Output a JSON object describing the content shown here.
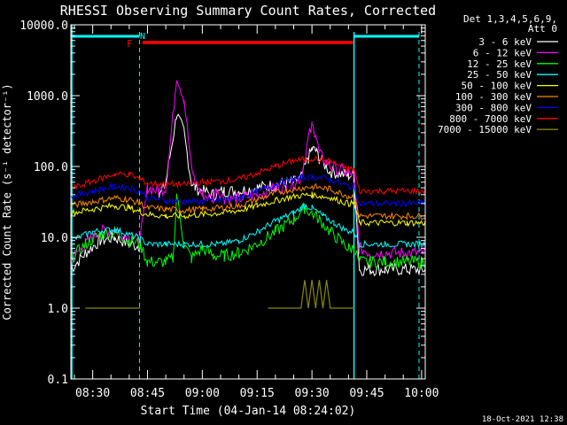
{
  "chart_data": {
    "type": "line",
    "title": "RHESSI Observing Summary Count Rates, Corrected",
    "xlabel": "Start Time (04-Jan-14 08:24:02)",
    "ylabel": "Corrected Count Rate (s⁻¹ detector⁻¹)",
    "ylog": true,
    "ylim": [
      0.1,
      10000
    ],
    "xlim_minutes": [
      24.03,
      121
    ],
    "yticks": [
      {
        "v": 0.1,
        "label": "0.1"
      },
      {
        "v": 1,
        "label": "1.0"
      },
      {
        "v": 10,
        "label": "10.0"
      },
      {
        "v": 100,
        "label": "100.0"
      },
      {
        "v": 1000,
        "label": "1000.0"
      },
      {
        "v": 10000,
        "label": "10000.0"
      }
    ],
    "xticks": [
      {
        "m": 30,
        "label": "08:30"
      },
      {
        "m": 45,
        "label": "08:45"
      },
      {
        "m": 60,
        "label": "09:00"
      },
      {
        "m": 75,
        "label": "09:15"
      },
      {
        "m": 90,
        "label": "09:30"
      },
      {
        "m": 105,
        "label": "09:45"
      },
      {
        "m": 120,
        "label": "10:00"
      }
    ],
    "legend_header": [
      "Det 1,3,4,5,6,9,",
      "Att 0"
    ],
    "legend_position": "right",
    "series": [
      {
        "name": "3 - 6 keV",
        "color": "#ffffff",
        "x": [
          24,
          28,
          32,
          36,
          40,
          43,
          45,
          48,
          50,
          53,
          55,
          57,
          58,
          60,
          63,
          66,
          70,
          75,
          80,
          85,
          87,
          89,
          90,
          91,
          92,
          95,
          100,
          101.5,
          103,
          106,
          110,
          116,
          120,
          121
        ],
        "y": [
          3.5,
          6,
          9,
          10,
          8,
          7.5,
          null,
          35,
          60,
          550,
          300,
          60,
          50,
          45,
          40,
          45,
          45,
          50,
          55,
          60,
          70,
          130,
          175,
          165,
          130,
          85,
          75,
          75,
          3.5,
          3.5,
          3.5,
          3.5,
          3.5,
          3.5
        ]
      },
      {
        "name": "6 - 12 keV",
        "color": "#ff00ff",
        "x": [
          24,
          28,
          32,
          36,
          40,
          43,
          45,
          48,
          50,
          51.5,
          53,
          55,
          57,
          58,
          60,
          63,
          64,
          66,
          70,
          75,
          80,
          85,
          87,
          89,
          90,
          91,
          92,
          95,
          100,
          101.5,
          103,
          106,
          110,
          116,
          120,
          121
        ],
        "y": [
          5,
          8,
          12,
          13,
          10,
          9,
          50,
          45,
          50,
          300,
          1900,
          900,
          100,
          60,
          40,
          35,
          50,
          35,
          35,
          40,
          50,
          55,
          70,
          250,
          370,
          300,
          150,
          100,
          80,
          80,
          7,
          6,
          6,
          6,
          6,
          6
        ]
      },
      {
        "name": "12 - 25 keV",
        "color": "#00ff00",
        "x": [
          24,
          28,
          32,
          36,
          40,
          43,
          45,
          48,
          50,
          52,
          53,
          55,
          57,
          60,
          63,
          66,
          70,
          75,
          80,
          85,
          88,
          90,
          92,
          95,
          100,
          101.5,
          103,
          106,
          110,
          116,
          120,
          121
        ],
        "y": [
          5,
          8,
          11,
          12,
          9,
          8,
          4.5,
          4.5,
          4.5,
          5,
          40,
          8,
          5,
          7,
          5.5,
          5.5,
          6,
          8,
          12,
          18,
          26,
          22,
          18,
          12,
          7,
          7,
          4.5,
          4.5,
          4.5,
          4.5,
          4.5,
          4.5
        ]
      },
      {
        "name": "25 - 50 keV",
        "color": "#00ffff",
        "x": [
          24,
          30,
          36,
          40,
          43,
          45,
          50,
          55,
          60,
          65,
          70,
          75,
          80,
          85,
          88,
          90,
          93,
          96,
          100,
          101.5,
          103,
          110,
          116,
          121
        ],
        "y": [
          9,
          12,
          13,
          11,
          9.5,
          8,
          8,
          8,
          8,
          8,
          9,
          12,
          17,
          22,
          28,
          26,
          20,
          16,
          12,
          12,
          8,
          8,
          8,
          8
        ]
      },
      {
        "name": "50 - 100 keV",
        "color": "#ffff00",
        "x": [
          24,
          30,
          36,
          40,
          43,
          45,
          50,
          55,
          60,
          65,
          70,
          75,
          80,
          85,
          90,
          95,
          100,
          101.5,
          103,
          110,
          116,
          121
        ],
        "y": [
          22,
          25,
          28,
          26,
          23,
          21,
          20,
          20,
          21,
          22,
          24,
          28,
          33,
          38,
          40,
          36,
          30,
          30,
          16,
          16,
          16,
          16
        ]
      },
      {
        "name": "100 - 300 keV",
        "color": "#ff8800",
        "x": [
          24,
          30,
          36,
          40,
          43,
          45,
          50,
          55,
          60,
          65,
          70,
          75,
          80,
          85,
          90,
          95,
          100,
          101.5,
          103,
          110,
          116,
          121
        ],
        "y": [
          28,
          32,
          36,
          34,
          30,
          26,
          25,
          24,
          25,
          26,
          28,
          34,
          42,
          48,
          52,
          48,
          38,
          38,
          20,
          20,
          20,
          20
        ]
      },
      {
        "name": "300 - 800 keV",
        "color": "#0000ff",
        "x": [
          24,
          30,
          36,
          40,
          43,
          45,
          50,
          55,
          60,
          65,
          70,
          75,
          80,
          85,
          90,
          95,
          100,
          101.5,
          103,
          110,
          116,
          121
        ],
        "y": [
          38,
          45,
          52,
          50,
          44,
          36,
          33,
          32,
          32,
          33,
          36,
          44,
          56,
          66,
          72,
          66,
          52,
          52,
          30,
          30,
          30,
          30
        ]
      },
      {
        "name": "800 - 7000 keV",
        "color": "#ff0000",
        "x": [
          24,
          30,
          36,
          40,
          43,
          45,
          50,
          55,
          60,
          65,
          70,
          75,
          80,
          85,
          90,
          95,
          100,
          101.5,
          103,
          110,
          116,
          121
        ],
        "y": [
          48,
          62,
          78,
          78,
          66,
          58,
          56,
          56,
          60,
          62,
          66,
          80,
          100,
          120,
          130,
          118,
          92,
          92,
          45,
          45,
          45,
          45
        ]
      },
      {
        "name": "7000 - 15000 keV",
        "color": "#888800",
        "x": [
          24,
          28,
          32,
          36,
          40,
          43,
          45,
          48,
          50,
          53,
          55,
          58,
          60,
          63,
          66,
          70,
          75,
          78,
          80,
          83,
          85,
          87,
          88,
          89,
          90,
          91,
          92,
          93,
          94,
          95,
          97,
          100,
          101.5,
          103,
          110,
          116,
          121
        ],
        "y": [
          null,
          1,
          1,
          1,
          1,
          1,
          null,
          null,
          null,
          null,
          null,
          null,
          null,
          null,
          null,
          null,
          null,
          1,
          1,
          1,
          1,
          1,
          2.5,
          1,
          2.5,
          1,
          2.5,
          1,
          2.5,
          1,
          1,
          1,
          1,
          null,
          null,
          null,
          null
        ]
      }
    ],
    "annotations": [
      {
        "label": "F",
        "color": "#ff0000"
      },
      {
        "label": "N",
        "color": "#00ffff"
      }
    ]
  },
  "footer_timestamp": "18-Oct-2021 12:38"
}
